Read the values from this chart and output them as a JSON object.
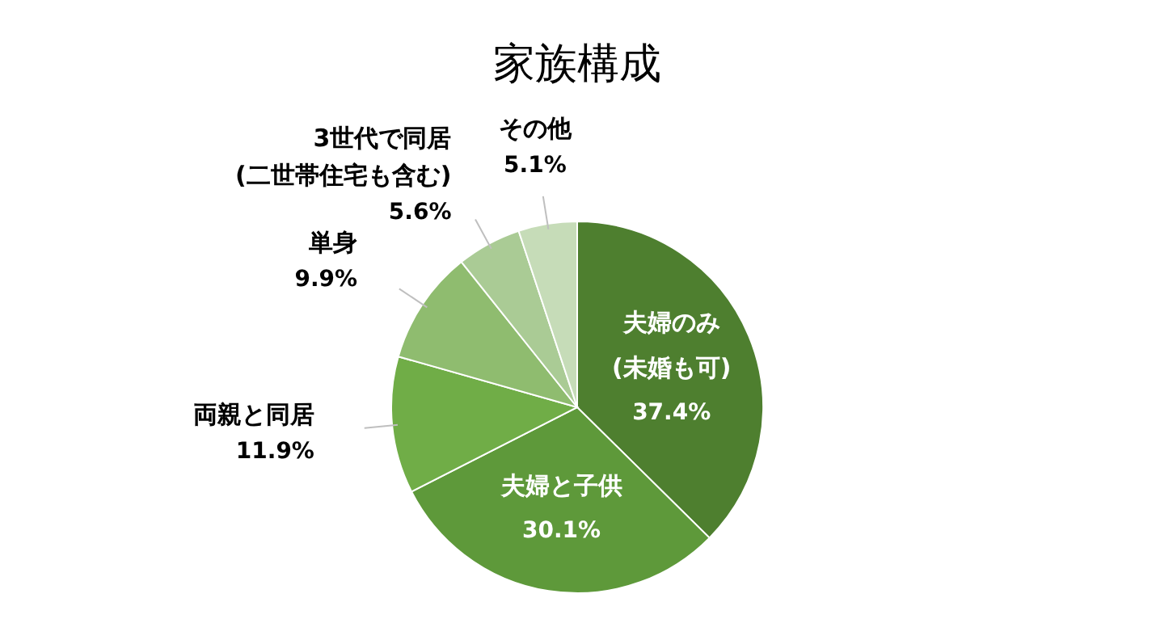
{
  "chart_data": {
    "type": "pie",
    "title": "家族構成",
    "categories": [
      "夫婦のみ\n(未婚も可)",
      "夫婦と子供",
      "両親と同居",
      "単身",
      "3世代で同居\n(二世帯住宅も含む)",
      "その他"
    ],
    "values": [
      37.4,
      30.1,
      11.9,
      9.9,
      5.6,
      5.1
    ],
    "value_labels": [
      "37.4%",
      "30.1%",
      "11.9%",
      "9.9%",
      "5.6%",
      "5.1%"
    ],
    "colors": [
      "#4e7f2f",
      "#5e993a",
      "#70ad47",
      "#8fbc6f",
      "#aacb95",
      "#c6dcb8"
    ]
  }
}
